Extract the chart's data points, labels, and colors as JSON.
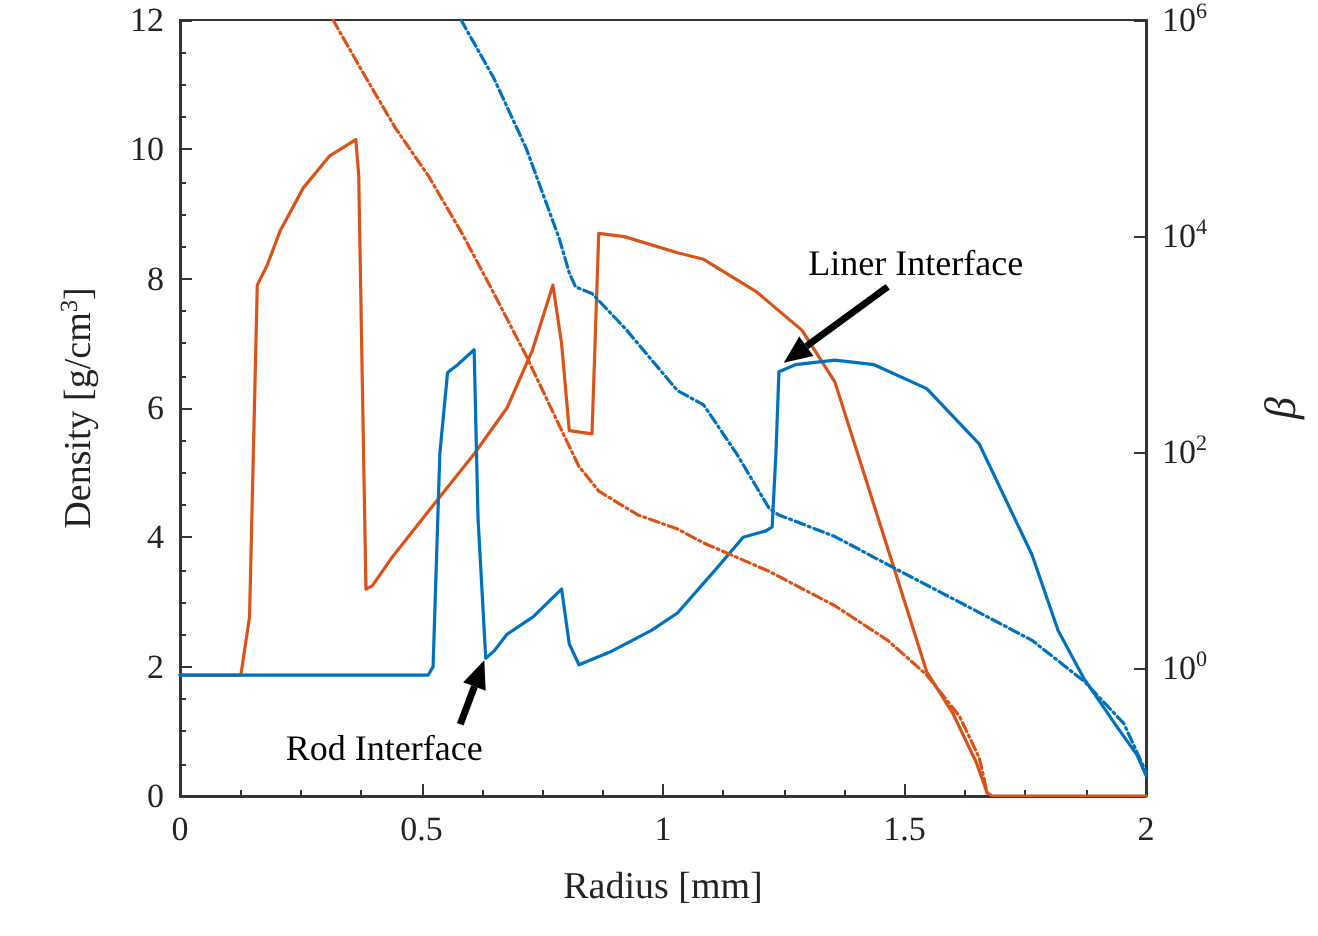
{
  "chart_data": {
    "type": "line",
    "xlabel": "Radius [mm]",
    "ylabel": "Density [g/cm$^{3}$]",
    "y2label": "β",
    "xlim": [
      0,
      2
    ],
    "xticks": [
      0,
      0.5,
      1,
      1.5,
      2
    ],
    "ylim": [
      0,
      12
    ],
    "yticks": [
      0,
      2,
      4,
      6,
      8,
      10,
      12
    ],
    "log": "y2",
    "y2lim": [
      0.066,
      1000000
    ],
    "y2ticks": [
      {
        "value": 1,
        "label": "10$^{0}$"
      },
      {
        "value": 100,
        "label": "10$^{2}$"
      },
      {
        "value": 10000,
        "label": "10$^{4}$"
      },
      {
        "value": 1000000,
        "label": "10$^{6}$"
      }
    ],
    "series": [
      {
        "color": "#d95319",
        "line_style": "solid",
        "x": [
          0,
          0.126,
          0.144,
          0.16,
          0.18,
          0.208,
          0.255,
          0.31,
          0.364,
          0.37,
          0.385,
          0.398,
          0.44,
          0.514,
          0.61,
          0.677,
          0.73,
          0.772,
          0.79,
          0.806,
          0.853,
          0.867,
          0.92,
          1.03,
          1.084,
          1.193,
          1.288,
          1.356,
          1.424,
          1.492,
          1.546,
          1.6,
          1.648,
          1.671,
          1.682,
          2
        ],
        "values": [
          1.87,
          1.87,
          2.77,
          7.9,
          8.2,
          8.75,
          9.4,
          9.9,
          10.15,
          9.6,
          3.2,
          3.25,
          3.7,
          4.4,
          5.3,
          6.0,
          6.9,
          7.9,
          7.0,
          5.65,
          5.6,
          8.7,
          8.65,
          8.4,
          8.3,
          7.8,
          7.2,
          6.4,
          4.8,
          3.2,
          1.92,
          1.28,
          0.53,
          0.05,
          0,
          0
        ]
      },
      {
        "color": "#0072bd",
        "line_style": "solid",
        "x": [
          0,
          0.514,
          0.524,
          0.538,
          0.554,
          0.575,
          0.609,
          0.617,
          0.633,
          0.65,
          0.677,
          0.731,
          0.79,
          0.806,
          0.826,
          0.894,
          0.976,
          1.03,
          1.111,
          1.166,
          1.213,
          1.226,
          1.234,
          1.24,
          1.274,
          1.356,
          1.437,
          1.546,
          1.655,
          1.764,
          1.818,
          1.872,
          1.94,
          1.981,
          2
        ],
        "values": [
          1.87,
          1.87,
          2.0,
          5.3,
          6.55,
          6.67,
          6.9,
          4.3,
          2.13,
          2.24,
          2.5,
          2.77,
          3.2,
          2.35,
          2.03,
          2.24,
          2.56,
          2.83,
          3.52,
          4.0,
          4.1,
          4.16,
          5.33,
          6.56,
          6.67,
          6.74,
          6.67,
          6.3,
          5.44,
          3.73,
          2.56,
          1.81,
          1.07,
          0.64,
          0.32
        ]
      },
      {
        "color": "#d95319",
        "line_style": "dashed",
        "axis": "y2",
        "x": [
          0.317,
          0.378,
          0.446,
          0.514,
          0.582,
          0.65,
          0.717,
          0.785,
          0.826,
          0.867,
          0.948,
          1.03,
          1.084,
          1.22,
          1.356,
          1.465,
          1.546,
          1.614,
          1.655,
          1.671
        ],
        "values": [
          1000000,
          331000,
          100000,
          36300,
          11000,
          2950,
          776,
          178,
          74,
          43.7,
          26.3,
          19.5,
          14.5,
          7.9,
          3.8,
          1.82,
          0.87,
          0.36,
          0.148,
          0.071
        ]
      },
      {
        "color": "#0072bd",
        "line_style": "dashed",
        "axis": "y2",
        "x": [
          0.582,
          0.65,
          0.717,
          0.785,
          0.806,
          0.819,
          0.853,
          0.921,
          1.03,
          1.084,
          1.152,
          1.22,
          1.24,
          1.356,
          1.492,
          1.628,
          1.764,
          1.872,
          1.954,
          2
        ],
        "values": [
          1000000,
          288000,
          64600,
          9550,
          4570,
          3390,
          2950,
          1410,
          372,
          275,
          97.7,
          30.2,
          26.3,
          16.6,
          7.9,
          3.8,
          1.82,
          0.76,
          0.31,
          0.11
        ]
      }
    ],
    "annotations": [
      {
        "text": "Rod Interface",
        "x": 0.63,
        "y": 2.1
      },
      {
        "text": "Liner Interface",
        "x": 1.25,
        "y": 6.7
      }
    ]
  }
}
